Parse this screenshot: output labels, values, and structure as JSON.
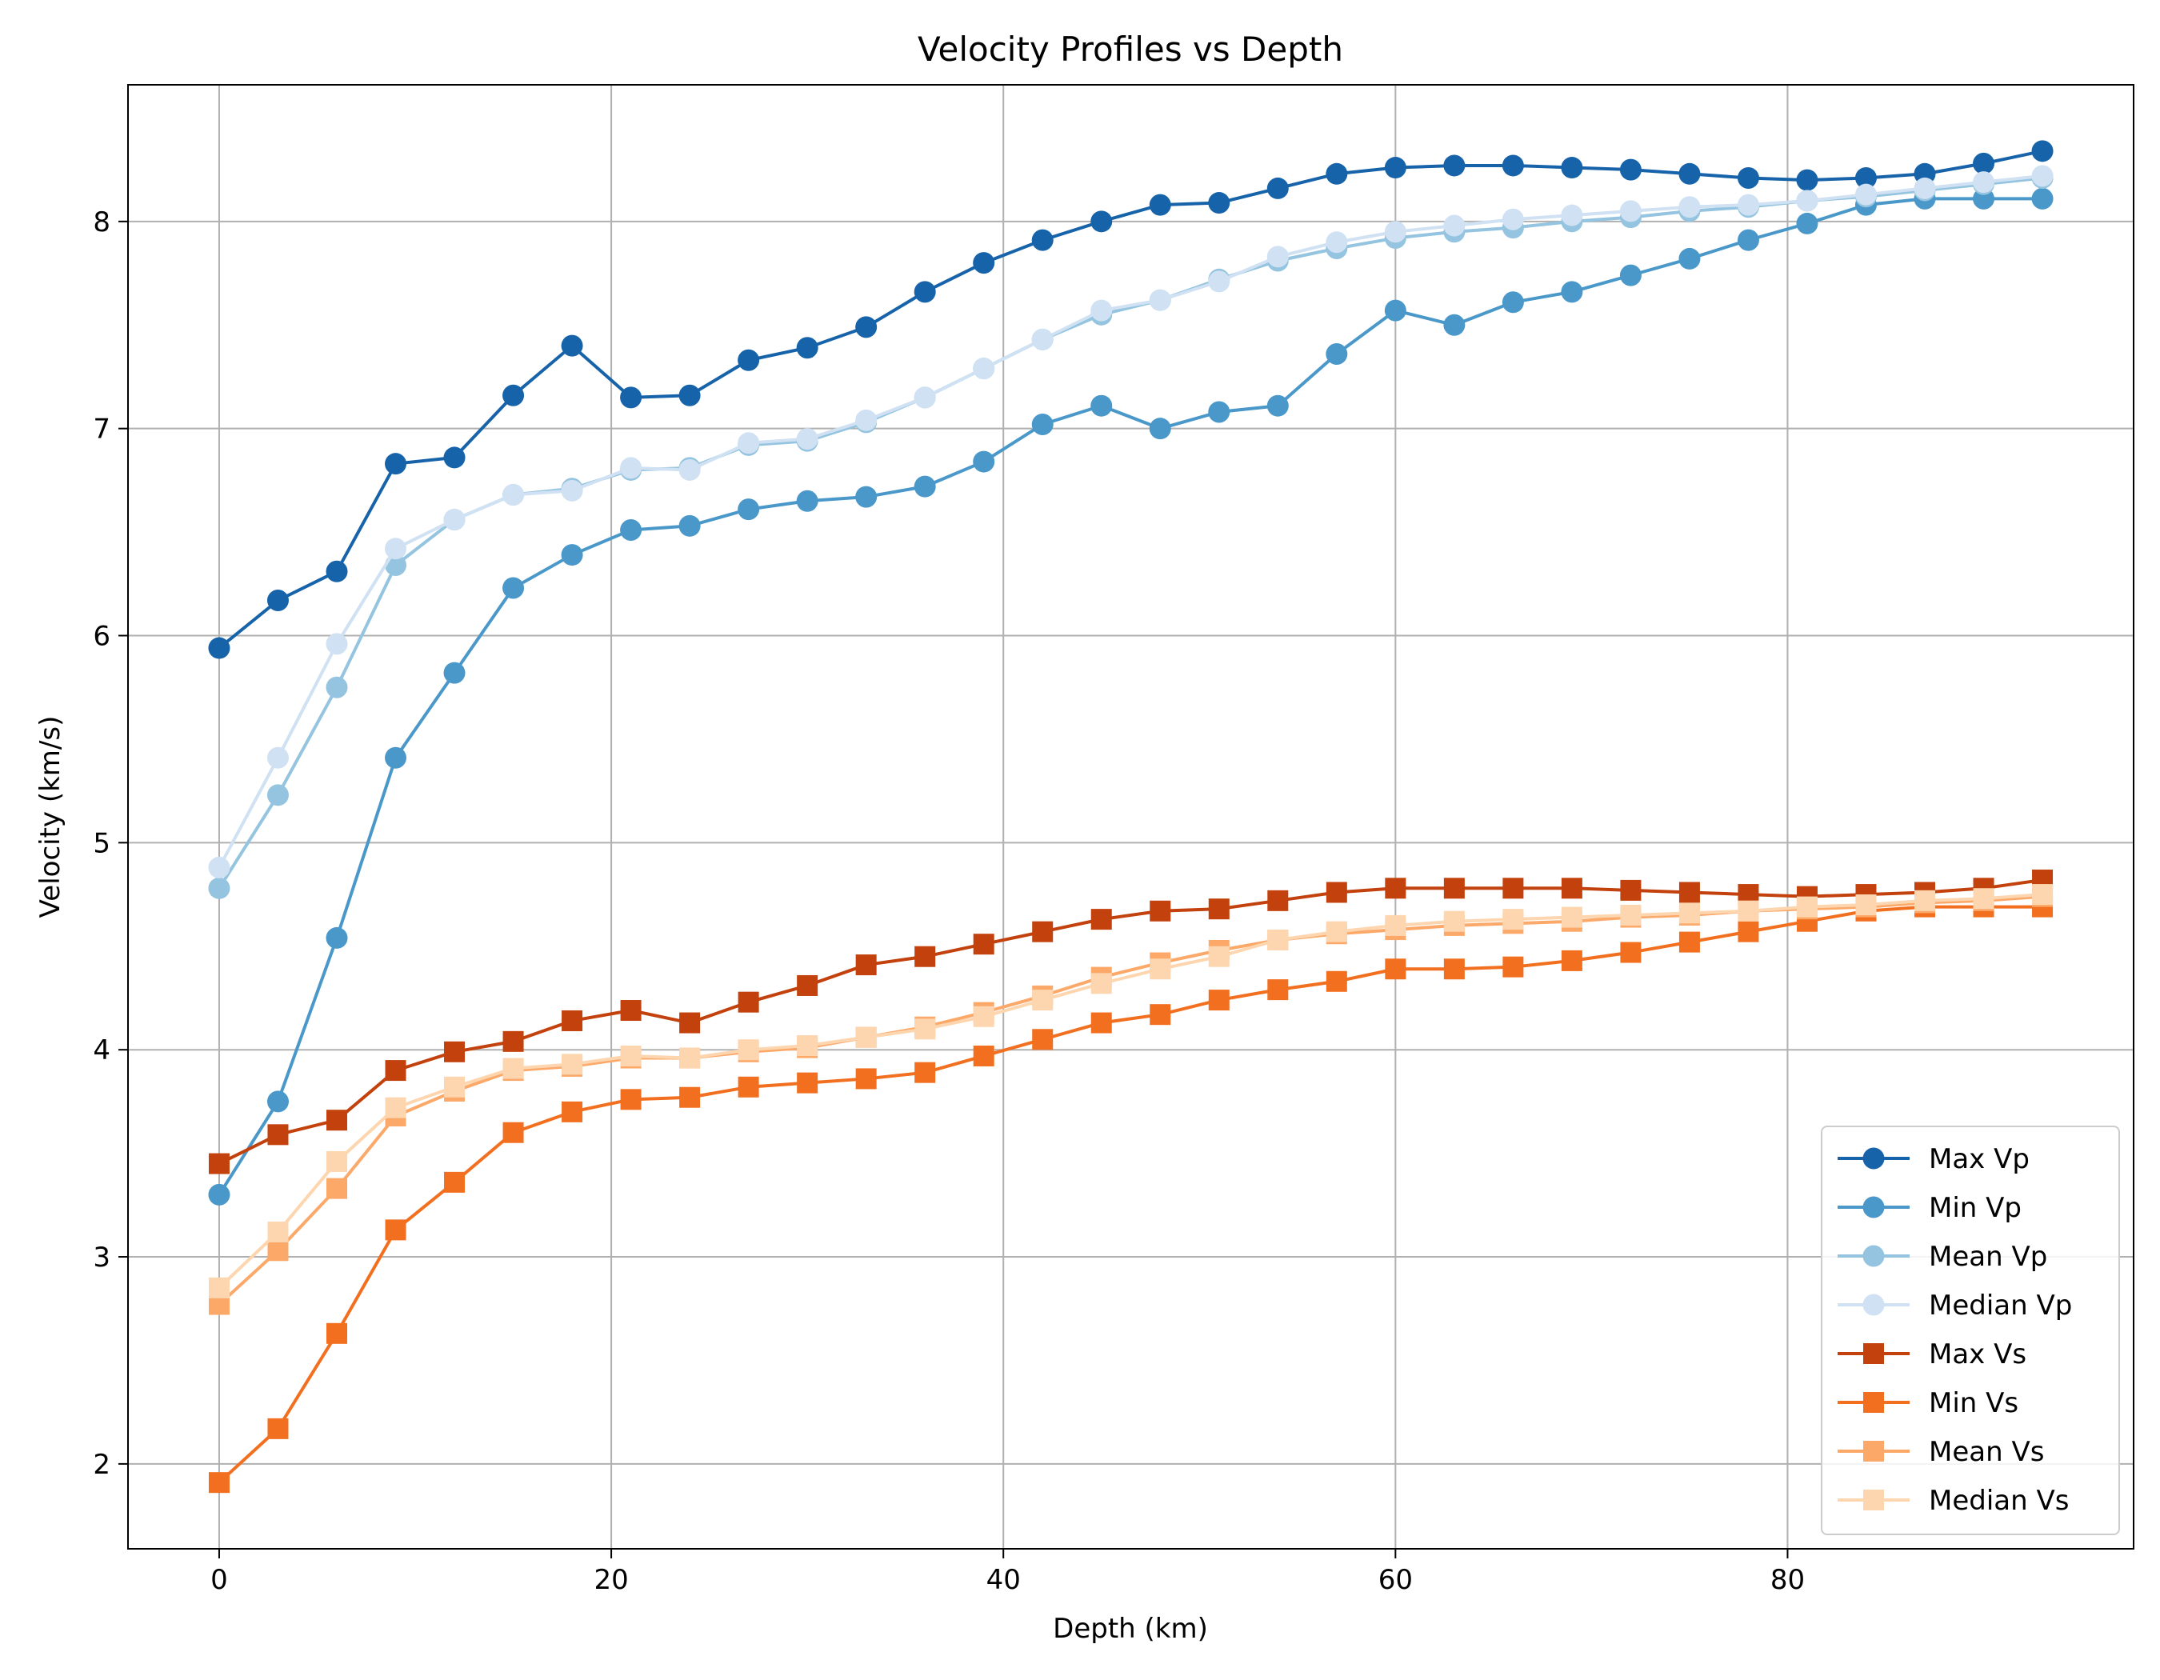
{
  "chart_data": {
    "type": "line",
    "title": "Velocity Profiles vs Depth",
    "xlabel": "Depth (km)",
    "ylabel": "Velocity (km/s)",
    "xlim": [
      -4.65,
      97.65
    ],
    "ylim": [
      1.59,
      8.66
    ],
    "xticks": [
      0,
      20,
      40,
      60,
      80
    ],
    "yticks": [
      2,
      3,
      4,
      5,
      6,
      7,
      8
    ],
    "grid": true,
    "legend_position": "lower right",
    "x": [
      0,
      3,
      6,
      9,
      12,
      15,
      18,
      21,
      24,
      27,
      30,
      33,
      36,
      39,
      42,
      45,
      48,
      51,
      54,
      57,
      60,
      63,
      66,
      69,
      72,
      75,
      78,
      81,
      84,
      87,
      90,
      93
    ],
    "series": [
      {
        "name": "Max Vp",
        "color": "#1763aa",
        "marker": "circle",
        "values": [
          5.94,
          6.17,
          6.31,
          6.83,
          6.86,
          7.16,
          7.4,
          7.15,
          7.16,
          7.33,
          7.39,
          7.49,
          7.66,
          7.8,
          7.91,
          8.0,
          8.08,
          8.09,
          8.16,
          8.23,
          8.26,
          8.27,
          8.27,
          8.26,
          8.25,
          8.23,
          8.21,
          8.2,
          8.21,
          8.23,
          8.28,
          8.34
        ]
      },
      {
        "name": "Min Vp",
        "color": "#4a98c9",
        "marker": "circle",
        "values": [
          3.3,
          3.75,
          4.54,
          5.41,
          5.82,
          6.23,
          6.39,
          6.51,
          6.53,
          6.61,
          6.65,
          6.67,
          6.72,
          6.84,
          7.02,
          7.11,
          7.0,
          7.08,
          7.11,
          7.36,
          7.57,
          7.5,
          7.61,
          7.66,
          7.74,
          7.82,
          7.91,
          7.99,
          8.08,
          8.11,
          8.11,
          8.11
        ]
      },
      {
        "name": "Mean Vp",
        "color": "#94c4df",
        "marker": "circle",
        "values": [
          4.78,
          5.23,
          5.75,
          6.34,
          6.56,
          6.68,
          6.71,
          6.8,
          6.81,
          6.92,
          6.94,
          7.03,
          7.15,
          7.29,
          7.43,
          7.55,
          7.62,
          7.72,
          7.81,
          7.87,
          7.92,
          7.95,
          7.97,
          8.0,
          8.02,
          8.05,
          8.07,
          8.1,
          8.12,
          8.15,
          8.18,
          8.21
        ]
      },
      {
        "name": "Median Vp",
        "color": "#cfe1f2",
        "marker": "circle",
        "values": [
          4.88,
          5.41,
          5.96,
          6.42,
          6.56,
          6.68,
          6.7,
          6.81,
          6.8,
          6.93,
          6.95,
          7.04,
          7.15,
          7.29,
          7.43,
          7.57,
          7.62,
          7.71,
          7.83,
          7.9,
          7.95,
          7.98,
          8.01,
          8.03,
          8.05,
          8.07,
          8.08,
          8.1,
          8.13,
          8.16,
          8.19,
          8.22
        ]
      },
      {
        "name": "Max Vs",
        "color": "#c2410c",
        "marker": "square",
        "values": [
          3.45,
          3.59,
          3.66,
          3.9,
          3.99,
          4.04,
          4.14,
          4.19,
          4.13,
          4.23,
          4.31,
          4.41,
          4.45,
          4.51,
          4.57,
          4.63,
          4.67,
          4.68,
          4.72,
          4.76,
          4.78,
          4.78,
          4.78,
          4.78,
          4.77,
          4.76,
          4.75,
          4.74,
          4.75,
          4.76,
          4.78,
          4.82
        ]
      },
      {
        "name": "Min Vs",
        "color": "#f16f1f",
        "marker": "square",
        "values": [
          1.91,
          2.17,
          2.63,
          3.13,
          3.36,
          3.6,
          3.7,
          3.76,
          3.77,
          3.82,
          3.84,
          3.86,
          3.89,
          3.97,
          4.05,
          4.13,
          4.17,
          4.24,
          4.29,
          4.33,
          4.39,
          4.39,
          4.4,
          4.43,
          4.47,
          4.52,
          4.57,
          4.62,
          4.67,
          4.69,
          4.69,
          4.69
        ]
      },
      {
        "name": "Mean Vs",
        "color": "#fca869",
        "marker": "square",
        "values": [
          2.77,
          3.03,
          3.33,
          3.68,
          3.8,
          3.9,
          3.92,
          3.96,
          3.96,
          3.99,
          4.01,
          4.06,
          4.11,
          4.18,
          4.26,
          4.35,
          4.42,
          4.48,
          4.53,
          4.56,
          4.58,
          4.6,
          4.61,
          4.62,
          4.64,
          4.65,
          4.67,
          4.68,
          4.69,
          4.71,
          4.72,
          4.74
        ]
      },
      {
        "name": "Median Vs",
        "color": "#fdd6b0",
        "marker": "square",
        "values": [
          2.85,
          3.12,
          3.46,
          3.72,
          3.82,
          3.91,
          3.93,
          3.97,
          3.96,
          4.0,
          4.02,
          4.06,
          4.1,
          4.16,
          4.24,
          4.32,
          4.39,
          4.45,
          4.53,
          4.57,
          4.6,
          4.62,
          4.63,
          4.64,
          4.65,
          4.66,
          4.67,
          4.69,
          4.7,
          4.72,
          4.73,
          4.75
        ]
      }
    ]
  }
}
